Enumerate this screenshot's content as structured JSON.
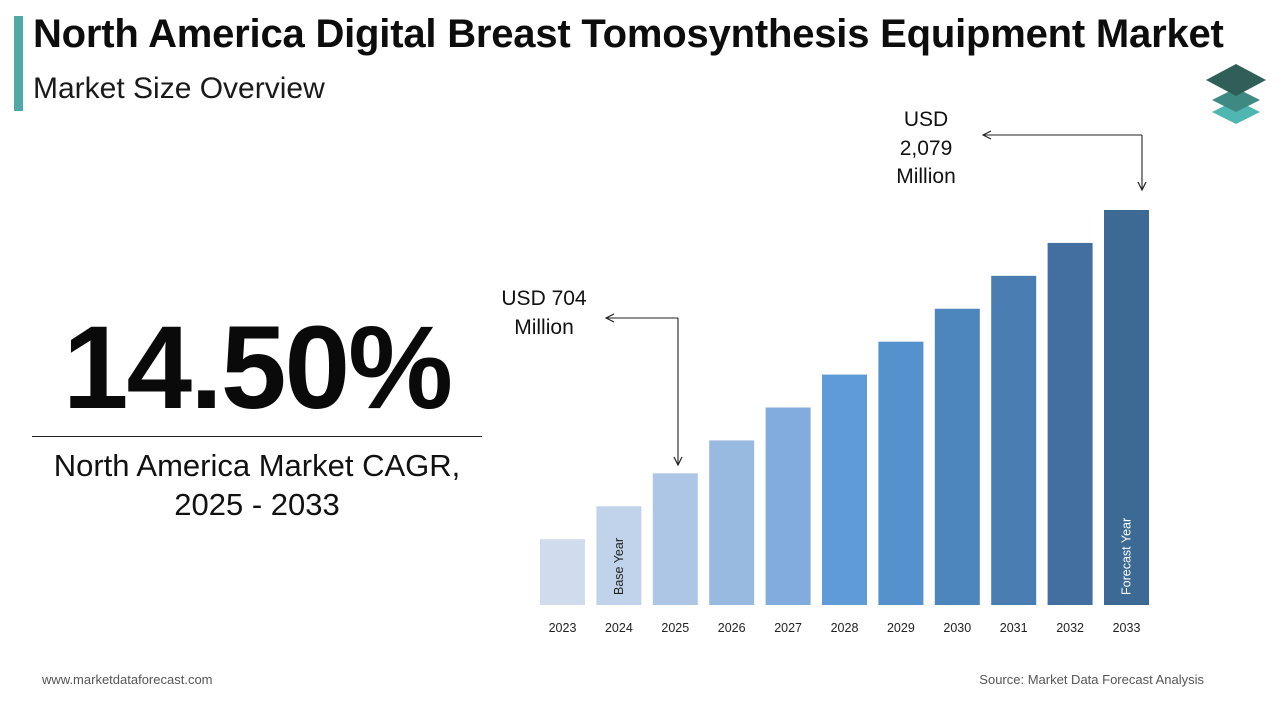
{
  "header": {
    "title": "North America Digital Breast Tomosynthesis Equipment Market",
    "subtitle": "Market Size Overview"
  },
  "cagr": {
    "value": "14.50%",
    "label_line1": "North America Market CAGR,",
    "label_line2": "2025 - 2033"
  },
  "annotations": {
    "start": {
      "line1": "USD 704",
      "line2": "Million"
    },
    "end": {
      "line1": "USD",
      "line2": "2,079",
      "line3": "Million"
    }
  },
  "footer": {
    "website": "www.marketdataforecast.com",
    "source": "Source: Market Data Forecast Analysis"
  },
  "chart_data": {
    "type": "bar",
    "categories": [
      "2023",
      "2024",
      "2025",
      "2026",
      "2027",
      "2028",
      "2029",
      "2030",
      "2031",
      "2032",
      "2033"
    ],
    "values": [
      200,
      300,
      400,
      500,
      600,
      700,
      800,
      900,
      1000,
      1100,
      1200
    ],
    "bar_labels": {
      "2024": "Base Year",
      "2033": "Forecast Year"
    },
    "colors": [
      "#d0dcee",
      "#c0d3ea",
      "#adc6e6",
      "#98b9e0",
      "#82acde",
      "#5f9bd6",
      "#5591cc",
      "#4d86bd",
      "#4a7eb2",
      "#426f9f",
      "#3d6a94"
    ],
    "ylim": [
      0,
      1200
    ],
    "grid": false,
    "legend": "none"
  }
}
